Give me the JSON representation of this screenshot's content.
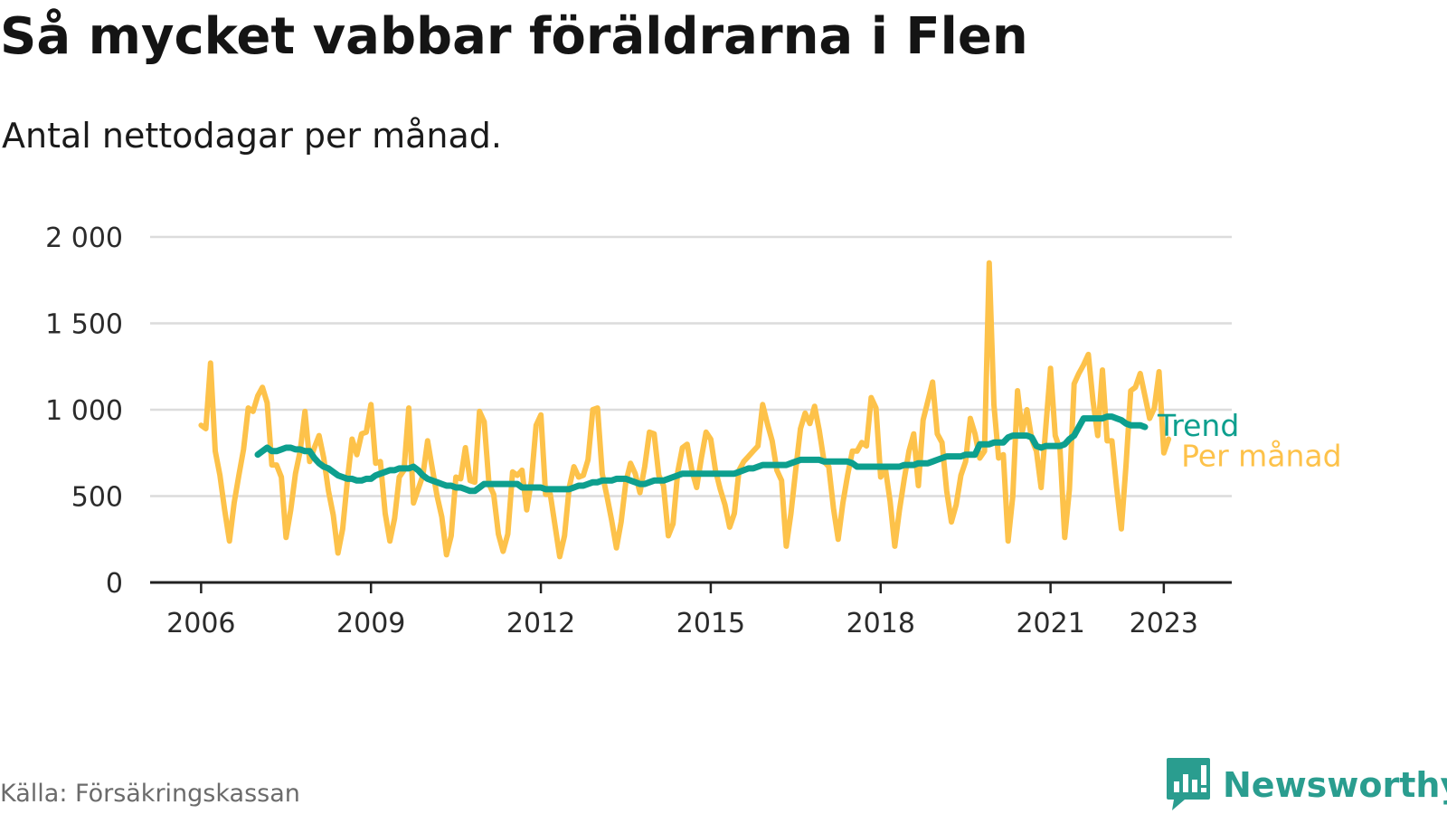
{
  "header": {
    "title": "Så mycket vabbar föräldrarna i Flen",
    "subtitle": "Antal nettodagar per månad."
  },
  "footer": {
    "source": "Källa: Försäkringskassan",
    "brand": "Newsworthy"
  },
  "colors": {
    "per_manad": "#fdc24a",
    "trend": "#0d9f8e",
    "grid": "#dcdcdc",
    "axis": "#222222",
    "brand": "#2a9d8f",
    "source": "#6b6b6b"
  },
  "chart_data": {
    "type": "line",
    "title": "Så mycket vabbar föräldrarna i Flen",
    "subtitle": "Antal nettodagar per månad.",
    "xlabel": "",
    "ylabel": "",
    "x_ticks": [
      "2006",
      "2009",
      "2012",
      "2015",
      "2018",
      "2021",
      "2023"
    ],
    "x_tick_values": [
      2006,
      2009,
      2012,
      2015,
      2018,
      2021,
      2023
    ],
    "y_ticks": [
      "0",
      "500",
      "1 000",
      "1 500",
      "2 000"
    ],
    "y_tick_values": [
      0,
      500,
      1000,
      1500,
      2000
    ],
    "ylim": [
      0,
      2000
    ],
    "xlim": [
      2005.1,
      2024.2
    ],
    "grid": true,
    "legend": "direct labels at line ends (right)",
    "series": [
      {
        "name": "Per månad",
        "start": "2006-01",
        "values": [
          910,
          890,
          1270,
          760,
          620,
          420,
          240,
          460,
          620,
          770,
          1010,
          990,
          1080,
          1130,
          1040,
          680,
          680,
          610,
          260,
          420,
          630,
          760,
          990,
          700,
          780,
          850,
          720,
          530,
          390,
          170,
          310,
          590,
          830,
          740,
          860,
          870,
          1030,
          690,
          700,
          400,
          240,
          370,
          610,
          650,
          1010,
          460,
          540,
          620,
          820,
          660,
          500,
          380,
          160,
          270,
          610,
          600,
          780,
          590,
          580,
          990,
          930,
          570,
          510,
          280,
          180,
          280,
          640,
          620,
          650,
          420,
          590,
          910,
          970,
          510,
          510,
          330,
          150,
          270,
          550,
          670,
          610,
          620,
          710,
          1000,
          1010,
          630,
          500,
          360,
          200,
          350,
          580,
          690,
          630,
          520,
          670,
          870,
          860,
          620,
          560,
          270,
          340,
          640,
          780,
          800,
          650,
          550,
          720,
          870,
          830,
          650,
          540,
          450,
          320,
          400,
          650,
          700,
          730,
          760,
          790,
          1030,
          920,
          820,
          650,
          590,
          210,
          400,
          650,
          890,
          980,
          920,
          1020,
          880,
          700,
          670,
          430,
          250,
          460,
          620,
          760,
          760,
          810,
          790,
          1070,
          1010,
          610,
          660,
          470,
          210,
          420,
          600,
          760,
          860,
          560,
          940,
          1050,
          1160,
          860,
          810,
          530,
          350,
          450,
          620,
          700,
          950,
          860,
          720,
          760,
          1850,
          1030,
          720,
          740,
          240,
          500,
          1110,
          870,
          1000,
          830,
          760,
          550,
          900,
          1240,
          850,
          770,
          260,
          540,
          1150,
          1210,
          1260,
          1320,
          1050,
          850,
          1230,
          820,
          820,
          550,
          310,
          680,
          1110,
          1130,
          1210,
          1080,
          950,
          1010,
          1220,
          750,
          830
        ]
      },
      {
        "name": "Trend",
        "start": "2007-01",
        "values": [
          740,
          760,
          780,
          760,
          760,
          770,
          780,
          780,
          770,
          770,
          760,
          760,
          720,
          690,
          670,
          660,
          640,
          620,
          610,
          600,
          600,
          590,
          590,
          600,
          600,
          620,
          630,
          640,
          650,
          650,
          660,
          660,
          660,
          670,
          650,
          620,
          600,
          590,
          580,
          570,
          560,
          560,
          550,
          550,
          540,
          530,
          530,
          550,
          570,
          570,
          570,
          570,
          570,
          570,
          570,
          570,
          550,
          550,
          550,
          550,
          550,
          540,
          540,
          540,
          540,
          540,
          540,
          550,
          560,
          560,
          570,
          580,
          580,
          590,
          590,
          590,
          600,
          600,
          600,
          590,
          580,
          570,
          570,
          580,
          590,
          590,
          590,
          600,
          610,
          620,
          630,
          630,
          630,
          630,
          630,
          630,
          630,
          630,
          630,
          630,
          630,
          630,
          640,
          650,
          660,
          660,
          670,
          680,
          680,
          680,
          680,
          680,
          680,
          690,
          700,
          710,
          710,
          710,
          710,
          710,
          700,
          700,
          700,
          700,
          700,
          700,
          690,
          670,
          670,
          670,
          670,
          670,
          670,
          670,
          670,
          670,
          670,
          680,
          680,
          680,
          690,
          690,
          690,
          700,
          710,
          720,
          730,
          730,
          730,
          730,
          740,
          740,
          740,
          800,
          800,
          800,
          810,
          810,
          810,
          840,
          850,
          850,
          850,
          850,
          840,
          790,
          780,
          790,
          790,
          790,
          790,
          800,
          830,
          850,
          900,
          950,
          950,
          950,
          950,
          950,
          960,
          960,
          950,
          940,
          920,
          910,
          910,
          910,
          900
        ]
      }
    ]
  }
}
